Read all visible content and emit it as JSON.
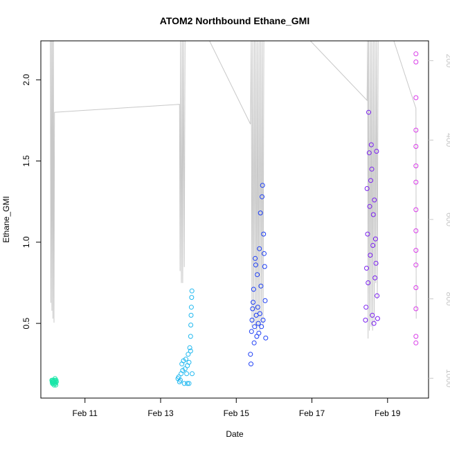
{
  "chart_data": {
    "type": "scatter",
    "title": "ATOM2 Northbound Ethane_GMI",
    "xlabel": "Date",
    "ylabel": "Ethane_GMI",
    "xlim": [
      "2017-02-09 20:00",
      "2017-02-20 02:00"
    ],
    "ylim": [
      0.04,
      2.24
    ],
    "x_ticks": [
      {
        "value": "2017-02-11",
        "label": "Feb 11"
      },
      {
        "value": "2017-02-13",
        "label": "Feb 13"
      },
      {
        "value": "2017-02-15",
        "label": "Feb 15"
      },
      {
        "value": "2017-02-17",
        "label": "Feb 17"
      },
      {
        "value": "2017-02-19",
        "label": "Feb 19"
      }
    ],
    "y_ticks": [
      {
        "value": 0.5,
        "label": "0.5"
      },
      {
        "value": 1.0,
        "label": "1.0"
      },
      {
        "value": 1.5,
        "label": "1.5"
      },
      {
        "value": 2.0,
        "label": "2.0"
      }
    ],
    "secondary_axis": {
      "side": "right",
      "reversed": true,
      "lim": [
        1050,
        150
      ],
      "ticks": [
        {
          "value": 200,
          "label": "200"
        },
        {
          "value": 400,
          "label": "400"
        },
        {
          "value": 600,
          "label": "600"
        },
        {
          "value": 800,
          "label": "800"
        },
        {
          "value": 1000,
          "label": "1000"
        }
      ],
      "color": "#c8c8c8"
    },
    "grid": false,
    "point_marker": "open-circle",
    "series": [
      {
        "color": "#19e6a8",
        "points": [
          [
            "2017-02-10 03:00",
            0.15
          ],
          [
            "2017-02-10 03:10",
            0.14
          ],
          [
            "2017-02-10 03:20",
            0.13
          ],
          [
            "2017-02-10 03:30",
            0.15
          ],
          [
            "2017-02-10 03:40",
            0.14
          ],
          [
            "2017-02-10 03:50",
            0.13
          ],
          [
            "2017-02-10 04:00",
            0.14
          ],
          [
            "2017-02-10 04:10",
            0.15
          ],
          [
            "2017-02-10 04:20",
            0.12
          ],
          [
            "2017-02-10 04:30",
            0.14
          ],
          [
            "2017-02-10 04:40",
            0.13
          ],
          [
            "2017-02-10 04:50",
            0.15
          ],
          [
            "2017-02-10 05:00",
            0.16
          ],
          [
            "2017-02-10 05:10",
            0.13
          ],
          [
            "2017-02-10 05:20",
            0.14
          ],
          [
            "2017-02-10 05:30",
            0.12
          ],
          [
            "2017-02-10 05:40",
            0.15
          ],
          [
            "2017-02-10 05:50",
            0.14
          ]
        ]
      },
      {
        "color": "#1fb8f0",
        "points": [
          [
            "2017-02-13 11:00",
            0.16
          ],
          [
            "2017-02-13 11:30",
            0.17
          ],
          [
            "2017-02-13 12:00",
            0.14
          ],
          [
            "2017-02-13 12:30",
            0.15
          ],
          [
            "2017-02-13 13:00",
            0.19
          ],
          [
            "2017-02-13 13:30",
            0.25
          ],
          [
            "2017-02-13 14:00",
            0.21
          ],
          [
            "2017-02-13 14:30",
            0.27
          ],
          [
            "2017-02-13 15:00",
            0.13
          ],
          [
            "2017-02-13 15:30",
            0.22
          ],
          [
            "2017-02-13 16:00",
            0.28
          ],
          [
            "2017-02-13 16:30",
            0.19
          ],
          [
            "2017-02-13 17:00",
            0.13
          ],
          [
            "2017-02-13 17:30",
            0.31
          ],
          [
            "2017-02-13 18:00",
            0.26
          ],
          [
            "2017-02-13 18:30",
            0.35
          ],
          [
            "2017-02-13 19:00",
            0.42
          ],
          [
            "2017-02-13 19:10",
            0.49
          ],
          [
            "2017-02-13 19:20",
            0.55
          ],
          [
            "2017-02-13 19:30",
            0.6
          ],
          [
            "2017-02-13 19:40",
            0.66
          ],
          [
            "2017-02-13 19:50",
            0.7
          ],
          [
            "2017-02-13 20:00",
            0.19
          ],
          [
            "2017-02-13 19:00",
            0.33
          ],
          [
            "2017-02-13 18:00",
            0.13
          ],
          [
            "2017-02-13 17:00",
            0.24
          ]
        ]
      },
      {
        "color": "#1a3cf5",
        "points": [
          [
            "2017-02-15 09:00",
            0.31
          ],
          [
            "2017-02-15 09:20",
            0.25
          ],
          [
            "2017-02-15 09:40",
            0.45
          ],
          [
            "2017-02-15 10:00",
            0.52
          ],
          [
            "2017-02-15 10:20",
            0.59
          ],
          [
            "2017-02-15 10:40",
            0.63
          ],
          [
            "2017-02-15 11:00",
            0.71
          ],
          [
            "2017-02-15 11:20",
            0.38
          ],
          [
            "2017-02-15 11:40",
            0.48
          ],
          [
            "2017-02-15 12:00",
            0.9
          ],
          [
            "2017-02-15 12:20",
            0.86
          ],
          [
            "2017-02-15 12:40",
            0.55
          ],
          [
            "2017-02-15 13:00",
            0.42
          ],
          [
            "2017-02-15 13:20",
            0.8
          ],
          [
            "2017-02-15 13:40",
            0.6
          ],
          [
            "2017-02-15 14:00",
            0.5
          ],
          [
            "2017-02-15 14:20",
            0.44
          ],
          [
            "2017-02-15 14:40",
            0.96
          ],
          [
            "2017-02-15 15:00",
            0.56
          ],
          [
            "2017-02-15 15:20",
            1.18
          ],
          [
            "2017-02-15 15:40",
            0.73
          ],
          [
            "2017-02-15 16:00",
            0.48
          ],
          [
            "2017-02-15 16:20",
            1.28
          ],
          [
            "2017-02-15 16:40",
            1.35
          ],
          [
            "2017-02-15 17:00",
            0.52
          ],
          [
            "2017-02-15 17:20",
            1.05
          ],
          [
            "2017-02-15 17:40",
            0.93
          ],
          [
            "2017-02-15 18:00",
            0.85
          ],
          [
            "2017-02-15 18:20",
            0.64
          ],
          [
            "2017-02-15 18:40",
            0.41
          ]
        ]
      },
      {
        "color": "#7a1ff0",
        "points": [
          [
            "2017-02-18 10:00",
            0.52
          ],
          [
            "2017-02-18 10:20",
            0.6
          ],
          [
            "2017-02-18 10:40",
            0.84
          ],
          [
            "2017-02-18 11:00",
            1.33
          ],
          [
            "2017-02-18 11:20",
            1.05
          ],
          [
            "2017-02-18 11:40",
            0.75
          ],
          [
            "2017-02-18 12:00",
            1.8
          ],
          [
            "2017-02-18 12:20",
            1.55
          ],
          [
            "2017-02-18 12:40",
            1.22
          ],
          [
            "2017-02-18 13:00",
            0.92
          ],
          [
            "2017-02-18 13:20",
            1.38
          ],
          [
            "2017-02-18 13:40",
            1.6
          ],
          [
            "2017-02-18 14:00",
            1.45
          ],
          [
            "2017-02-18 14:20",
            0.55
          ],
          [
            "2017-02-18 14:40",
            0.98
          ],
          [
            "2017-02-18 15:00",
            1.17
          ],
          [
            "2017-02-18 15:20",
            0.5
          ],
          [
            "2017-02-18 15:40",
            1.26
          ],
          [
            "2017-02-18 16:00",
            0.78
          ],
          [
            "2017-02-18 16:20",
            1.02
          ],
          [
            "2017-02-18 16:40",
            0.87
          ],
          [
            "2017-02-18 17:00",
            1.56
          ],
          [
            "2017-02-18 17:20",
            0.67
          ],
          [
            "2017-02-18 17:40",
            0.53
          ]
        ]
      },
      {
        "color": "#d83ae8",
        "points": [
          [
            "2017-02-19 18:00",
            2.16
          ],
          [
            "2017-02-19 18:00",
            2.11
          ],
          [
            "2017-02-19 18:00",
            1.89
          ],
          [
            "2017-02-19 18:00",
            1.69
          ],
          [
            "2017-02-19 18:00",
            1.59
          ],
          [
            "2017-02-19 18:00",
            1.47
          ],
          [
            "2017-02-19 18:00",
            1.37
          ],
          [
            "2017-02-19 18:00",
            1.2
          ],
          [
            "2017-02-19 18:00",
            1.07
          ],
          [
            "2017-02-19 18:00",
            0.95
          ],
          [
            "2017-02-19 18:00",
            0.86
          ],
          [
            "2017-02-19 18:00",
            0.72
          ],
          [
            "2017-02-19 18:00",
            0.59
          ],
          [
            "2017-02-19 18:00",
            0.42
          ],
          [
            "2017-02-19 18:00",
            0.38
          ]
        ]
      }
    ],
    "pressure_trace": {
      "color": "#c8c8c8",
      "points": [
        [
          "2017-02-10 02:00",
          150
        ],
        [
          "2017-02-10 02:20",
          810
        ],
        [
          "2017-02-10 02:40",
          150
        ],
        [
          "2017-02-10 03:00",
          830
        ],
        [
          "2017-02-10 03:20",
          150
        ],
        [
          "2017-02-10 03:40",
          850
        ],
        [
          "2017-02-10 04:00",
          150
        ],
        [
          "2017-02-10 04:20",
          860
        ],
        [
          "2017-02-10 04:40",
          330
        ],
        [
          "2017-02-13 12:00",
          310
        ],
        [
          "2017-02-13 12:20",
          730
        ],
        [
          "2017-02-13 12:40",
          150
        ],
        [
          "2017-02-13 13:10",
          760
        ],
        [
          "2017-02-13 13:40",
          150
        ],
        [
          "2017-02-13 14:00",
          760
        ],
        [
          "2017-02-13 14:30",
          150
        ],
        [
          "2017-02-13 15:00",
          720
        ],
        [
          "2017-02-13 15:30",
          150
        ],
        [
          "2017-02-14 07:00",
          150
        ],
        [
          "2017-02-15 09:00",
          360
        ],
        [
          "2017-02-15 09:30",
          150
        ],
        [
          "2017-02-15 10:00",
          870
        ],
        [
          "2017-02-15 10:30",
          150
        ],
        [
          "2017-02-15 11:00",
          860
        ],
        [
          "2017-02-15 11:30",
          150
        ],
        [
          "2017-02-15 12:00",
          870
        ],
        [
          "2017-02-15 12:30",
          150
        ],
        [
          "2017-02-15 13:00",
          880
        ],
        [
          "2017-02-15 13:30",
          150
        ],
        [
          "2017-02-15 14:00",
          870
        ],
        [
          "2017-02-15 14:30",
          150
        ],
        [
          "2017-02-15 15:00",
          880
        ],
        [
          "2017-02-15 15:30",
          150
        ],
        [
          "2017-02-15 16:00",
          860
        ],
        [
          "2017-02-15 16:30",
          150
        ],
        [
          "2017-02-15 17:00",
          870
        ],
        [
          "2017-02-15 17:30",
          150
        ],
        [
          "2017-02-16 23:00",
          150
        ],
        [
          "2017-02-18 11:00",
          300
        ],
        [
          "2017-02-18 11:20",
          150
        ],
        [
          "2017-02-18 11:40",
          900
        ],
        [
          "2017-02-18 12:00",
          150
        ],
        [
          "2017-02-18 12:30",
          880
        ],
        [
          "2017-02-18 13:00",
          150
        ],
        [
          "2017-02-18 13:30",
          870
        ],
        [
          "2017-02-18 14:00",
          150
        ],
        [
          "2017-02-18 14:30",
          880
        ],
        [
          "2017-02-18 15:00",
          150
        ],
        [
          "2017-02-18 15:30",
          860
        ],
        [
          "2017-02-18 16:00",
          150
        ],
        [
          "2017-02-18 16:30",
          760
        ],
        [
          "2017-02-18 17:00",
          150
        ],
        [
          "2017-02-18 17:30",
          800
        ],
        [
          "2017-02-18 18:00",
          150
        ],
        [
          "2017-02-19 04:00",
          150
        ],
        [
          "2017-02-19 18:00",
          320
        ],
        [
          "2017-02-19 18:10",
          850
        ]
      ]
    }
  }
}
